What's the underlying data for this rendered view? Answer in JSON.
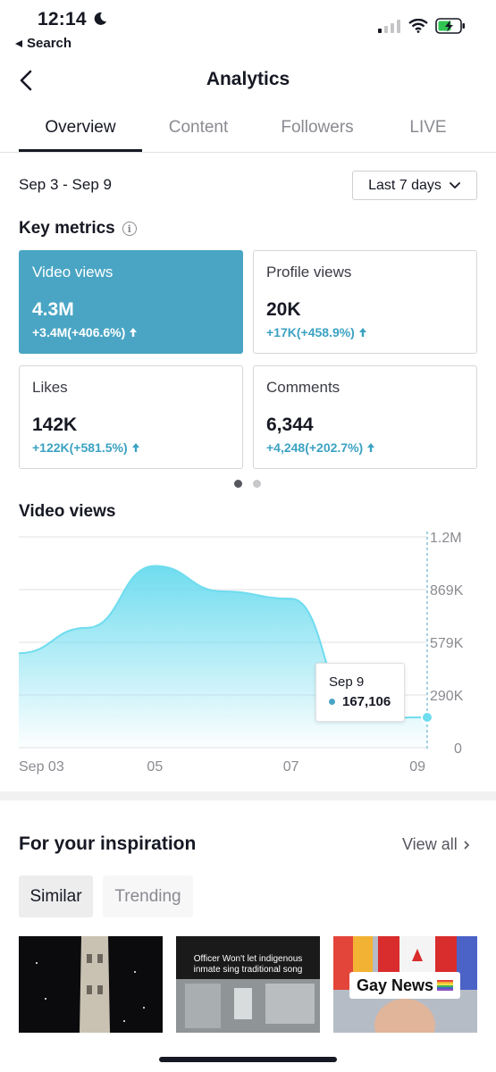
{
  "status_bar": {
    "time": "12:14",
    "back_app": "Search"
  },
  "header": {
    "title": "Analytics"
  },
  "tabs": [
    {
      "label": "Overview",
      "active": true
    },
    {
      "label": "Content",
      "active": false
    },
    {
      "label": "Followers",
      "active": false
    },
    {
      "label": "LIVE",
      "active": false
    }
  ],
  "date_range": "Sep 3 - Sep 9",
  "period_select": {
    "selected": "Last 7 days"
  },
  "key_metrics": {
    "title": "Key metrics",
    "cards": [
      {
        "label": "Video views",
        "value": "4.3M",
        "delta": "+3.4M(+406.6%)",
        "selected": true
      },
      {
        "label": "Profile views",
        "value": "20K",
        "delta": "+17K(+458.9%)",
        "selected": false
      },
      {
        "label": "Likes",
        "value": "142K",
        "delta": "+122K(+581.5%)",
        "selected": false
      },
      {
        "label": "Comments",
        "value": "6,344",
        "delta": "+4,248(+202.7%)",
        "selected": false
      }
    ],
    "page_indicator": {
      "count": 2,
      "active": 0
    }
  },
  "chart_title": "Video views",
  "chart_data": {
    "type": "area",
    "title": "Video views",
    "x_tick_labels": [
      "Sep 03",
      "05",
      "07",
      "09"
    ],
    "y_tick_labels": [
      "1.2M",
      "869K",
      "579K",
      "290K",
      "0"
    ],
    "ylim": [
      0,
      1160000
    ],
    "x": [
      "Sep 03",
      "Sep 04",
      "Sep 05",
      "Sep 06",
      "Sep 07",
      "Sep 08",
      "Sep 09"
    ],
    "values": [
      520000,
      660000,
      1000000,
      860000,
      820000,
      160000,
      167106
    ],
    "grid": true,
    "color": "#6fdcef",
    "tooltip": {
      "date": "Sep 9",
      "value": "167,106"
    }
  },
  "inspiration": {
    "title": "For your inspiration",
    "view_all": "View all",
    "pills": [
      "Similar",
      "Trending"
    ],
    "thumbnails": [
      {
        "caption": ""
      },
      {
        "caption": "Officer Won't let indigenous inmate sing traditional song"
      },
      {
        "caption": "Gay News"
      }
    ]
  },
  "colors": {
    "accent": "#4aa5c4",
    "chart_fill": "#6fdcef",
    "text": "#161823",
    "muted": "#8a8b91"
  }
}
